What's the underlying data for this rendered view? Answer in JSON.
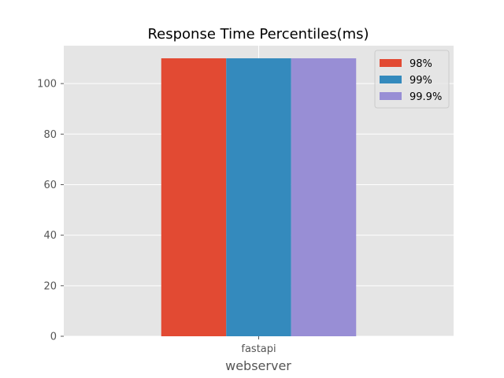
{
  "chart_data": {
    "type": "bar",
    "title": "Response Time Percentiles(ms)",
    "xlabel": "webserver",
    "ylabel": "",
    "categories": [
      "fastapi"
    ],
    "series": [
      {
        "name": "98%",
        "values": [
          110
        ],
        "color": "#E24A33"
      },
      {
        "name": "99%",
        "values": [
          110
        ],
        "color": "#348ABD"
      },
      {
        "name": "99.9%",
        "values": [
          110
        ],
        "color": "#988ED5"
      }
    ],
    "ylim": [
      0,
      115
    ],
    "yticks": [
      0,
      20,
      40,
      60,
      80,
      100
    ],
    "grid": true,
    "legend_position": "top-right"
  }
}
